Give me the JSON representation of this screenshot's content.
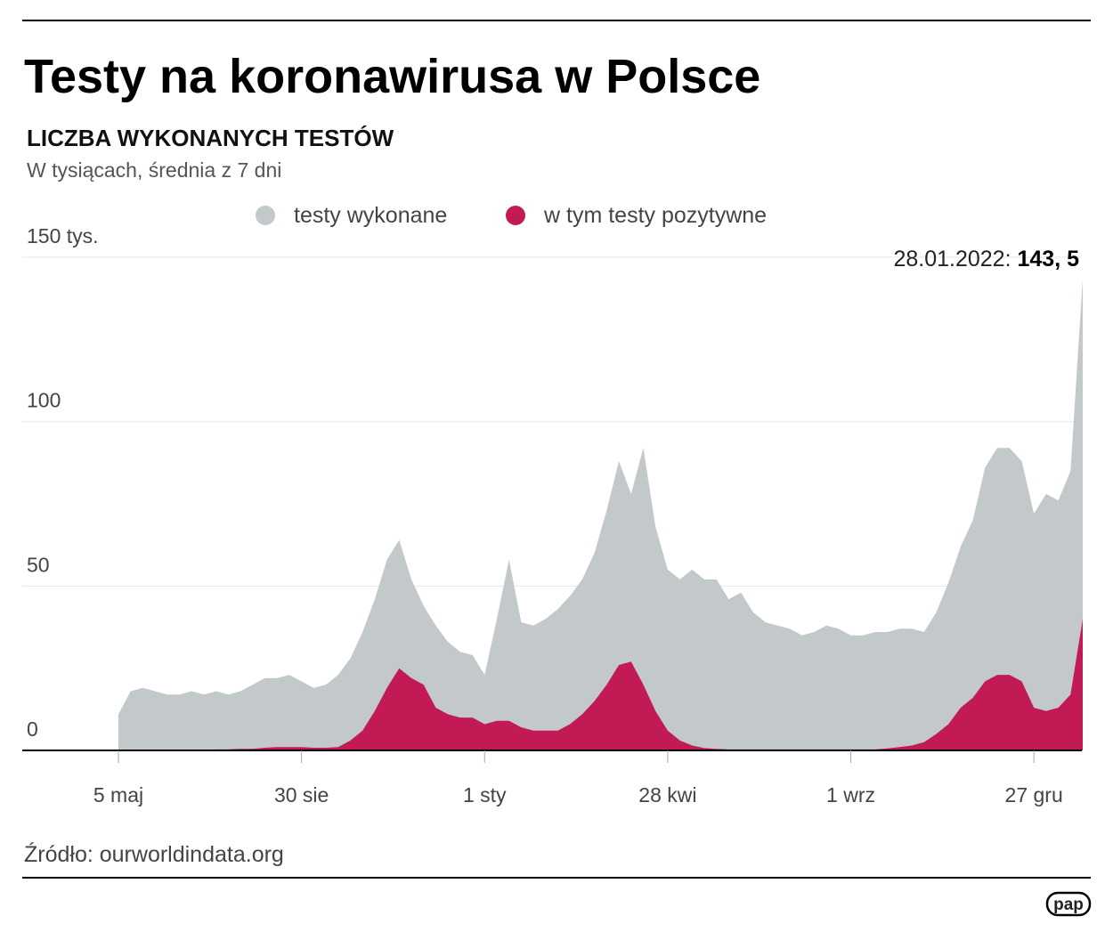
{
  "chart_data": {
    "type": "area",
    "title": "Testy na koronawirusa w Polsce",
    "subtitle": "LICZBA WYKONANYCH TESTÓW",
    "note": "W tysiącach, średnia z 7 dni",
    "source": "Źródło: ourworldindata.org",
    "logo": "pap",
    "annotation": {
      "date": "28.01.2022:",
      "value": "143, 5"
    },
    "categories": [
      "5 maj",
      null,
      null,
      null,
      null,
      null,
      null,
      null,
      null,
      null,
      null,
      null,
      null,
      null,
      null,
      "30 sie",
      null,
      null,
      null,
      null,
      null,
      null,
      null,
      null,
      null,
      null,
      null,
      null,
      null,
      null,
      "1 sty",
      null,
      null,
      null,
      null,
      null,
      null,
      null,
      null,
      null,
      null,
      null,
      null,
      null,
      null,
      "28 kwi",
      null,
      null,
      null,
      null,
      null,
      null,
      null,
      null,
      null,
      null,
      null,
      null,
      null,
      null,
      "1 wrz",
      null,
      null,
      null,
      null,
      null,
      null,
      null,
      null,
      null,
      null,
      null,
      null,
      null,
      null,
      "27 gru",
      null,
      null,
      null,
      null
    ],
    "series": [
      {
        "name": "testy wykonane",
        "color": "#c3c8ca",
        "values": [
          11,
          18,
          19,
          18,
          17,
          17,
          18,
          17,
          18,
          17,
          18,
          20,
          22,
          22,
          23,
          21,
          19,
          20,
          23,
          28,
          36,
          46,
          58,
          64,
          52,
          44,
          38,
          33,
          30,
          29,
          23,
          40,
          58,
          39,
          38,
          40,
          43,
          47,
          52,
          60,
          73,
          88,
          78,
          92,
          68,
          55,
          52,
          55,
          52,
          52,
          46,
          48,
          42,
          39,
          38,
          37,
          35,
          36,
          38,
          37,
          35,
          35,
          36,
          36,
          37,
          37,
          36,
          42,
          51,
          62,
          70,
          86,
          92,
          92,
          88,
          72,
          78,
          76,
          85,
          143.5
        ]
      },
      {
        "name": "w tym testy pozytywne",
        "color": "#c21a55",
        "values": [
          0,
          0,
          0,
          0,
          0,
          0,
          0,
          0,
          0.3,
          0.3,
          0.5,
          0.5,
          0.8,
          1,
          1,
          1,
          0.8,
          0.8,
          1,
          3,
          6,
          12,
          19,
          25,
          22,
          20,
          13,
          11,
          10,
          10,
          8,
          9,
          9,
          7,
          6,
          6,
          6,
          8,
          11,
          15,
          20,
          26,
          27,
          20,
          12,
          6,
          3,
          1.5,
          0.7,
          0.5,
          0.3,
          0.3,
          0.3,
          0.3,
          0.3,
          0.3,
          0.3,
          0.3,
          0.3,
          0.3,
          0.3,
          0.3,
          0.3,
          0.6,
          1,
          1.5,
          2.5,
          5,
          8,
          13,
          16,
          21,
          23,
          23,
          21,
          13,
          12,
          13,
          17,
          40
        ]
      }
    ],
    "ylim": [
      0,
      150
    ],
    "yticks": [
      0,
      50,
      100,
      {
        "value": 150,
        "label": "150 tys."
      }
    ],
    "grid": true
  }
}
